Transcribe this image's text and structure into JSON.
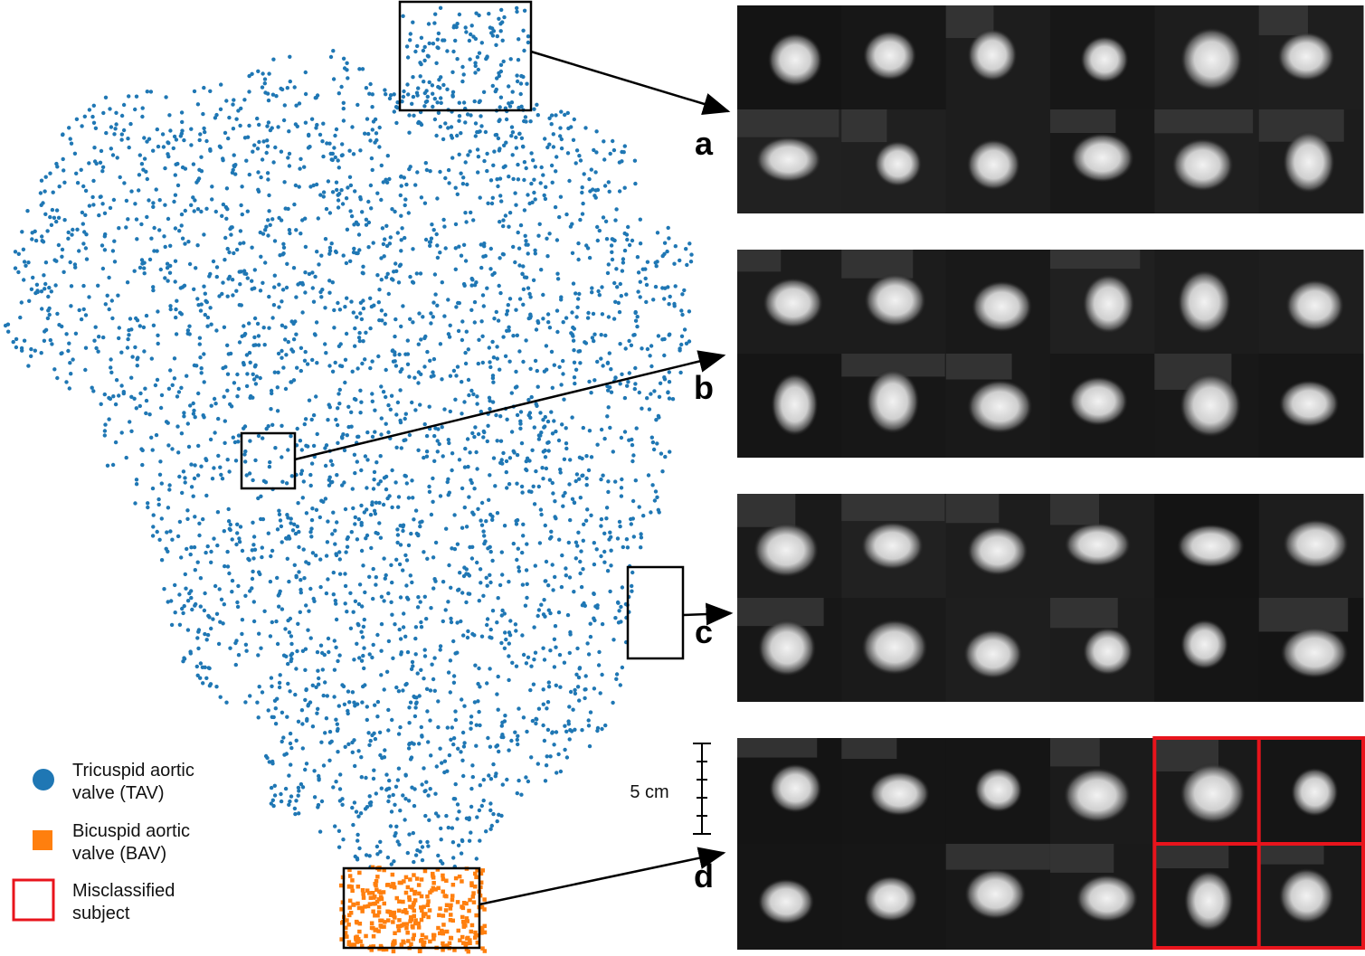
{
  "legend": [
    {
      "lines": [
        "Tricuspid aortic",
        "valve (TAV)"
      ],
      "color": "#1f77b4",
      "marker": "circle"
    },
    {
      "lines": [
        "Bicuspid aortic",
        "valve (BAV)"
      ],
      "color": "#ff7f0e",
      "marker": "square"
    },
    {
      "lines": [
        "Misclassified",
        "subject"
      ],
      "color": "#e8141c",
      "marker": "outline"
    }
  ],
  "panel_labels": [
    "a",
    "b",
    "c",
    "d"
  ],
  "scale_bar": {
    "label": "5 cm"
  }
}
